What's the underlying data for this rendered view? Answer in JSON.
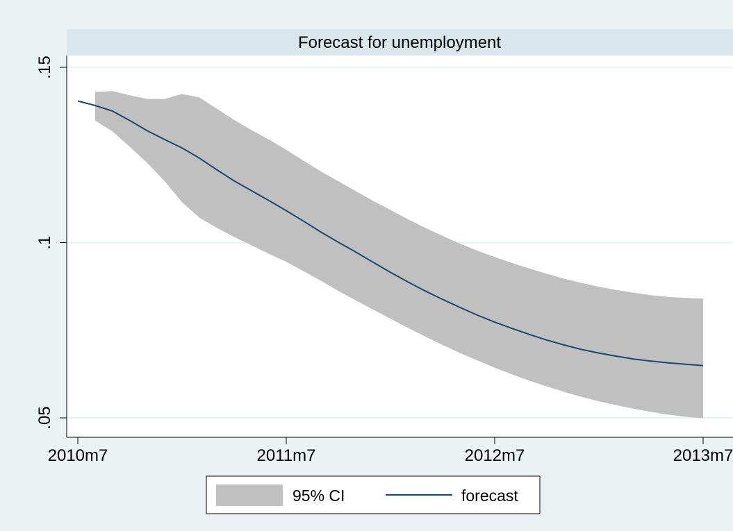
{
  "colors": {
    "outer_background": "#eaf2f3",
    "plot_background": "#ffffff",
    "title_band": "#d9e6eb",
    "gridline": "#eaf2f3",
    "ci_fill": "#c0c0c0",
    "forecast_line": "#1a476f",
    "text": "#000000"
  },
  "chart_data": {
    "type": "area",
    "title": "Forecast for unemployment",
    "xlabel": "",
    "ylabel": "",
    "x_tick_labels": [
      "2010m7",
      "2011m7",
      "2012m7",
      "2013m7"
    ],
    "x_tick_values": [
      0,
      12,
      24,
      36
    ],
    "y_tick_labels": [
      ".05",
      ".1",
      ".15"
    ],
    "y_tick_values": [
      0.05,
      0.1,
      0.15
    ],
    "xlim": [
      0,
      36
    ],
    "ylim": [
      0.05,
      0.15
    ],
    "grid": true,
    "legend_position": "bottom",
    "series": [
      {
        "name": "95% CI",
        "kind": "band",
        "x": [
          1,
          2,
          3,
          4,
          5,
          6,
          7,
          8,
          9,
          10,
          11,
          12,
          13,
          14,
          15,
          16,
          17,
          18,
          19,
          20,
          21,
          22,
          23,
          24,
          25,
          26,
          27,
          28,
          29,
          30,
          31,
          32,
          33,
          34,
          35,
          36
        ],
        "upper": [
          0.143,
          0.1432,
          0.142,
          0.141,
          0.141,
          0.1424,
          0.1414,
          0.1382,
          0.135,
          0.1321,
          0.1294,
          0.1265,
          0.1233,
          0.1203,
          0.1175,
          0.1147,
          0.1119,
          0.1093,
          0.1067,
          0.1042,
          0.1019,
          0.0997,
          0.0977,
          0.0959,
          0.0942,
          0.0926,
          0.0911,
          0.0897,
          0.0885,
          0.0874,
          0.0865,
          0.0857,
          0.085,
          0.0845,
          0.0842,
          0.084
        ],
        "lower": [
          0.1348,
          0.1317,
          0.1273,
          0.1227,
          0.1175,
          0.1115,
          0.1071,
          0.1042,
          0.1016,
          0.0992,
          0.0968,
          0.0945,
          0.0918,
          0.0891,
          0.0862,
          0.0835,
          0.0809,
          0.0783,
          0.0757,
          0.0732,
          0.0708,
          0.0685,
          0.0664,
          0.0643,
          0.0624,
          0.0606,
          0.059,
          0.0574,
          0.056,
          0.0547,
          0.0536,
          0.0526,
          0.0517,
          0.0509,
          0.0503,
          0.0499
        ]
      },
      {
        "name": "forecast",
        "kind": "line",
        "x": [
          0,
          1,
          2,
          3,
          4,
          5,
          6,
          7,
          8,
          9,
          10,
          11,
          12,
          13,
          14,
          15,
          16,
          17,
          18,
          19,
          20,
          21,
          22,
          23,
          24,
          25,
          26,
          27,
          28,
          29,
          30,
          31,
          32,
          33,
          34,
          35,
          36
        ],
        "y": [
          0.1404,
          0.1391,
          0.1375,
          0.1348,
          0.1319,
          0.1294,
          0.127,
          0.1241,
          0.1208,
          0.1176,
          0.1148,
          0.112,
          0.1091,
          0.1061,
          0.103,
          0.1001,
          0.0973,
          0.0944,
          0.0915,
          0.0888,
          0.0862,
          0.0838,
          0.0815,
          0.0793,
          0.0773,
          0.0755,
          0.0738,
          0.0722,
          0.0708,
          0.0695,
          0.0685,
          0.0676,
          0.0668,
          0.0662,
          0.0657,
          0.0653,
          0.0649
        ]
      }
    ]
  }
}
